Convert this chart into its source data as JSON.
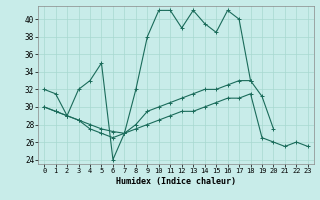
{
  "xlabel": "Humidex (Indice chaleur)",
  "bg_color": "#c8ece9",
  "line_color": "#1a6b5a",
  "grid_color": "#a8d8d0",
  "xlim": [
    -0.5,
    23.5
  ],
  "ylim": [
    23.5,
    41.5
  ],
  "xticks": [
    0,
    1,
    2,
    3,
    4,
    5,
    6,
    7,
    8,
    9,
    10,
    11,
    12,
    13,
    14,
    15,
    16,
    17,
    18,
    19,
    20,
    21,
    22,
    23
  ],
  "yticks": [
    24,
    26,
    28,
    30,
    32,
    34,
    36,
    38,
    40
  ],
  "line1_x": [
    0,
    1,
    2,
    3,
    4,
    5,
    6,
    7,
    8,
    9,
    10,
    11,
    12,
    13,
    14,
    15,
    16,
    17,
    18
  ],
  "line1_y": [
    32,
    31.5,
    29,
    32,
    33,
    35,
    24,
    27,
    32,
    38,
    41,
    41,
    39,
    41,
    39.5,
    38.5,
    41,
    40,
    33
  ],
  "line2_x": [
    0,
    1,
    2,
    3,
    4,
    5,
    6,
    7,
    8,
    9,
    10,
    11,
    12,
    13,
    14,
    15,
    16,
    17,
    18,
    19,
    20
  ],
  "line2_y": [
    30,
    29.5,
    29,
    28.5,
    28,
    27.5,
    27.2,
    27,
    28,
    29.5,
    30,
    30.5,
    31,
    31.5,
    32,
    32,
    32.5,
    33,
    33,
    31.2,
    27.5
  ],
  "line3_x": [
    0,
    1,
    2,
    3,
    4,
    5,
    6,
    7,
    8,
    9,
    10,
    11,
    12,
    13,
    14,
    15,
    16,
    17,
    18,
    19,
    20,
    21,
    22,
    23
  ],
  "line3_y": [
    30,
    29.5,
    29,
    28.5,
    27.5,
    27,
    26.5,
    27,
    27.5,
    28,
    28.5,
    29,
    29.5,
    29.5,
    30,
    30.5,
    31,
    31,
    31.5,
    26.5,
    26,
    25.5,
    26,
    25.5
  ],
  "xlabel_fontsize": 6,
  "tick_fontsize": 5
}
